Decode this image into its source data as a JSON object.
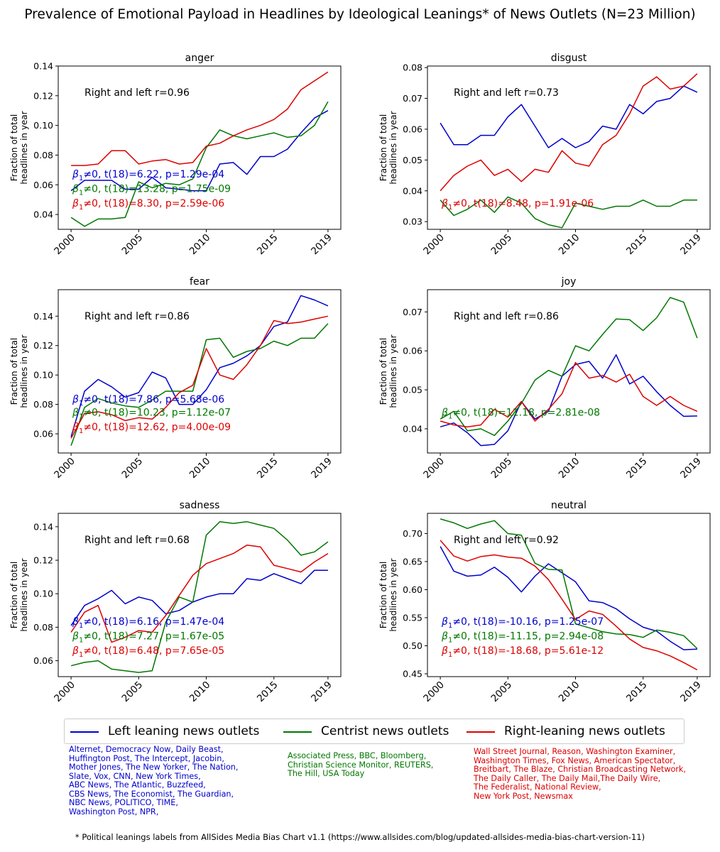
{
  "title": "Prevalence of Emotional Payload in Headlines by Ideological Leanings* of News Outlets (N=23 Million)",
  "colors": {
    "left": "#0000cc",
    "center": "#007700",
    "right": "#dd0000"
  },
  "chart_data": [
    {
      "type": "line",
      "title": "anger",
      "ylabel": "Fraction of total headlines in year",
      "x": [
        2000,
        2001,
        2002,
        2003,
        2004,
        2005,
        2006,
        2007,
        2008,
        2009,
        2010,
        2011,
        2012,
        2013,
        2014,
        2015,
        2016,
        2017,
        2018,
        2019
      ],
      "xticks": [
        2000,
        2005,
        2010,
        2015,
        2019
      ],
      "ylim": [
        0.03,
        0.14
      ],
      "yticks": [
        0.04,
        0.06,
        0.08,
        0.1,
        0.12,
        0.14
      ],
      "yticklabels": [
        "0.04",
        "0.06",
        "0.08",
        "0.10",
        "0.12",
        "0.14"
      ],
      "series": [
        {
          "name": "left",
          "values": [
            0.056,
            0.063,
            0.063,
            0.063,
            0.057,
            0.057,
            0.065,
            0.058,
            0.057,
            0.056,
            0.056,
            0.074,
            0.075,
            0.067,
            0.079,
            0.079,
            0.084,
            0.095,
            0.105,
            0.11
          ]
        },
        {
          "name": "center",
          "values": [
            0.038,
            0.032,
            0.037,
            0.037,
            0.038,
            0.062,
            0.058,
            0.061,
            0.06,
            0.064,
            0.085,
            0.097,
            0.093,
            0.091,
            0.093,
            0.095,
            0.092,
            0.093,
            0.1,
            0.116
          ]
        },
        {
          "name": "right",
          "values": [
            0.073,
            0.073,
            0.074,
            0.083,
            0.083,
            0.074,
            0.076,
            0.077,
            0.074,
            0.075,
            0.086,
            0.088,
            0.093,
            0.097,
            0.1,
            0.104,
            0.111,
            0.124,
            0.13,
            0.136
          ]
        }
      ],
      "annotations": {
        "r": "Right and left r=0.96",
        "stats": [
          {
            "series": "left",
            "text": "≠0, t(18)=6.22, p=1.29e-04"
          },
          {
            "series": "center",
            "text": "≠0, t(18)=13.28, p=1.75e-09"
          },
          {
            "series": "right",
            "text": "≠0, t(18)=8.30, p=2.59e-06"
          }
        ]
      }
    },
    {
      "type": "line",
      "title": "disgust",
      "ylabel": "Fraction of total headlines in year",
      "x": [
        2000,
        2001,
        2002,
        2003,
        2004,
        2005,
        2006,
        2007,
        2008,
        2009,
        2010,
        2011,
        2012,
        2013,
        2014,
        2015,
        2016,
        2017,
        2018,
        2019
      ],
      "xticks": [
        2000,
        2005,
        2010,
        2015,
        2019
      ],
      "ylim": [
        0.0275,
        0.0805
      ],
      "yticks": [
        0.03,
        0.04,
        0.05,
        0.06,
        0.07,
        0.08
      ],
      "yticklabels": [
        "0.03",
        "0.04",
        "0.05",
        "0.06",
        "0.07",
        "0.08"
      ],
      "series": [
        {
          "name": "left",
          "values": [
            0.062,
            0.055,
            0.055,
            0.058,
            0.058,
            0.064,
            0.068,
            0.061,
            0.054,
            0.057,
            0.054,
            0.056,
            0.061,
            0.06,
            0.068,
            0.065,
            0.069,
            0.07,
            0.074,
            0.072
          ]
        },
        {
          "name": "center",
          "values": [
            0.037,
            0.032,
            0.034,
            0.037,
            0.033,
            0.038,
            0.036,
            0.031,
            0.029,
            0.028,
            0.036,
            0.035,
            0.034,
            0.035,
            0.035,
            0.037,
            0.035,
            0.035,
            0.037,
            0.037
          ]
        },
        {
          "name": "right",
          "values": [
            0.04,
            0.045,
            0.048,
            0.05,
            0.045,
            0.047,
            0.043,
            0.047,
            0.046,
            0.053,
            0.049,
            0.048,
            0.055,
            0.058,
            0.065,
            0.074,
            0.077,
            0.073,
            0.074,
            0.078
          ]
        }
      ],
      "annotations": {
        "r": "Right and left r=0.73",
        "stats": [
          {
            "series": "right",
            "text": "≠0, t(18)=8.48, p=1.91e-06"
          }
        ]
      }
    },
    {
      "type": "line",
      "title": "fear",
      "ylabel": "Fraction of total headlines in year",
      "x": [
        2000,
        2001,
        2002,
        2003,
        2004,
        2005,
        2006,
        2007,
        2008,
        2009,
        2010,
        2011,
        2012,
        2013,
        2014,
        2015,
        2016,
        2017,
        2018,
        2019
      ],
      "xticks": [
        2000,
        2005,
        2010,
        2015,
        2019
      ],
      "ylim": [
        0.047,
        0.158
      ],
      "yticks": [
        0.06,
        0.08,
        0.1,
        0.12,
        0.14
      ],
      "yticklabels": [
        "0.06",
        "0.08",
        "0.10",
        "0.12",
        "0.14"
      ],
      "series": [
        {
          "name": "left",
          "values": [
            0.058,
            0.089,
            0.097,
            0.092,
            0.085,
            0.088,
            0.102,
            0.098,
            0.08,
            0.08,
            0.09,
            0.105,
            0.108,
            0.113,
            0.12,
            0.133,
            0.136,
            0.154,
            0.151,
            0.147
          ]
        },
        {
          "name": "center",
          "values": [
            0.052,
            0.078,
            0.084,
            0.081,
            0.079,
            0.078,
            0.083,
            0.089,
            0.089,
            0.089,
            0.124,
            0.125,
            0.112,
            0.116,
            0.118,
            0.123,
            0.12,
            0.125,
            0.125,
            0.135
          ]
        },
        {
          "name": "right",
          "values": [
            0.057,
            0.074,
            0.075,
            0.073,
            0.069,
            0.071,
            0.07,
            0.078,
            0.088,
            0.093,
            0.118,
            0.1,
            0.097,
            0.107,
            0.12,
            0.137,
            0.135,
            0.136,
            0.138,
            0.14
          ]
        }
      ],
      "annotations": {
        "r": "Right and left r=0.86",
        "stats": [
          {
            "series": "left",
            "text": "≠0, t(18)=7.86, p=5.68e-06"
          },
          {
            "series": "center",
            "text": "≠0, t(18)=10.23, p=1.12e-07"
          },
          {
            "series": "right",
            "text": "≠0, t(18)=12.62, p=4.00e-09"
          }
        ]
      }
    },
    {
      "type": "line",
      "title": "joy",
      "ylabel": "Fraction of total headlines in year",
      "x": [
        2000,
        2001,
        2002,
        2003,
        2004,
        2005,
        2006,
        2007,
        2008,
        2009,
        2010,
        2011,
        2012,
        2013,
        2014,
        2015,
        2016,
        2017,
        2018,
        2019
      ],
      "xticks": [
        2000,
        2005,
        2010,
        2015,
        2019
      ],
      "ylim": [
        0.0338,
        0.0757
      ],
      "yticks": [
        0.04,
        0.05,
        0.06,
        0.07
      ],
      "yticklabels": [
        "0.04",
        "0.05",
        "0.06",
        "0.07"
      ],
      "series": [
        {
          "name": "left",
          "values": [
            0.0405,
            0.0415,
            0.039,
            0.0357,
            0.036,
            0.0395,
            0.047,
            0.0425,
            0.0445,
            0.0535,
            0.0565,
            0.0573,
            0.053,
            0.059,
            0.0515,
            0.0535,
            0.0495,
            0.046,
            0.0432,
            0.0433
          ]
        },
        {
          "name": "center",
          "values": [
            0.0425,
            0.0445,
            0.0395,
            0.04,
            0.0383,
            0.042,
            0.0465,
            0.0525,
            0.055,
            0.0535,
            0.0613,
            0.06,
            0.0642,
            0.0682,
            0.068,
            0.0652,
            0.0685,
            0.0737,
            0.0725,
            0.0633
          ]
        },
        {
          "name": "right",
          "values": [
            0.042,
            0.041,
            0.0405,
            0.041,
            0.045,
            0.043,
            0.047,
            0.042,
            0.045,
            0.049,
            0.057,
            0.053,
            0.0537,
            0.052,
            0.054,
            0.0483,
            0.046,
            0.0483,
            0.046,
            0.0445
          ]
        }
      ],
      "annotations": {
        "r": "Right and left r=0.86",
        "stats": [
          {
            "series": "center",
            "text": "≠0, t(18)=11.18, p=2.81e-08"
          }
        ]
      }
    },
    {
      "type": "line",
      "title": "sadness",
      "ylabel": "Fraction of total headlines in year",
      "x": [
        2000,
        2001,
        2002,
        2003,
        2004,
        2005,
        2006,
        2007,
        2008,
        2009,
        2010,
        2011,
        2012,
        2013,
        2014,
        2015,
        2016,
        2017,
        2018,
        2019
      ],
      "xticks": [
        2000,
        2005,
        2010,
        2015,
        2019
      ],
      "ylim": [
        0.0505,
        0.148
      ],
      "yticks": [
        0.06,
        0.08,
        0.1,
        0.12,
        0.14
      ],
      "yticklabels": [
        "0.06",
        "0.08",
        "0.10",
        "0.12",
        "0.14"
      ],
      "series": [
        {
          "name": "left",
          "values": [
            0.081,
            0.093,
            0.097,
            0.102,
            0.094,
            0.098,
            0.096,
            0.088,
            0.09,
            0.095,
            0.098,
            0.1,
            0.1,
            0.109,
            0.108,
            0.112,
            0.109,
            0.106,
            0.114,
            0.114
          ]
        },
        {
          "name": "center",
          "values": [
            0.057,
            0.059,
            0.06,
            0.055,
            0.054,
            0.053,
            0.054,
            0.083,
            0.098,
            0.095,
            0.135,
            0.143,
            0.142,
            0.143,
            0.141,
            0.139,
            0.132,
            0.123,
            0.125,
            0.131
          ]
        },
        {
          "name": "right",
          "values": [
            0.077,
            0.089,
            0.093,
            0.071,
            0.074,
            0.078,
            0.077,
            0.087,
            0.099,
            0.111,
            0.118,
            0.121,
            0.124,
            0.129,
            0.128,
            0.117,
            0.115,
            0.113,
            0.119,
            0.124
          ]
        }
      ],
      "annotations": {
        "r": "Right and left r=0.68",
        "stats": [
          {
            "series": "left",
            "text": "≠0, t(18)=6.16, p=1.47e-04"
          },
          {
            "series": "center",
            "text": "≠0, t(18)=7.27, p=1.67e-05"
          },
          {
            "series": "right",
            "text": "≠0, t(18)=6.48, p=7.65e-05"
          }
        ]
      }
    },
    {
      "type": "line",
      "title": "neutral",
      "ylabel": "Fraction of total headlines in year",
      "x": [
        2000,
        2001,
        2002,
        2003,
        2004,
        2005,
        2006,
        2007,
        2008,
        2009,
        2010,
        2011,
        2012,
        2013,
        2014,
        2015,
        2016,
        2017,
        2018,
        2019
      ],
      "xticks": [
        2000,
        2005,
        2010,
        2015,
        2019
      ],
      "ylim": [
        0.445,
        0.736
      ],
      "yticks": [
        0.45,
        0.5,
        0.55,
        0.6,
        0.65,
        0.7
      ],
      "yticklabels": [
        "0.45",
        "0.50",
        "0.55",
        "0.60",
        "0.65",
        "0.70"
      ],
      "series": [
        {
          "name": "left",
          "values": [
            0.677,
            0.633,
            0.624,
            0.626,
            0.64,
            0.622,
            0.596,
            0.624,
            0.646,
            0.63,
            0.614,
            0.58,
            0.577,
            0.566,
            0.548,
            0.533,
            0.526,
            0.508,
            0.493,
            0.494
          ]
        },
        {
          "name": "center",
          "values": [
            0.726,
            0.719,
            0.709,
            0.717,
            0.723,
            0.7,
            0.697,
            0.647,
            0.636,
            0.635,
            0.539,
            0.532,
            0.525,
            0.521,
            0.52,
            0.515,
            0.528,
            0.524,
            0.518,
            0.495
          ]
        },
        {
          "name": "right",
          "values": [
            0.688,
            0.66,
            0.651,
            0.659,
            0.662,
            0.658,
            0.656,
            0.642,
            0.618,
            0.583,
            0.547,
            0.562,
            0.556,
            0.535,
            0.512,
            0.497,
            0.491,
            0.482,
            0.47,
            0.457
          ]
        }
      ],
      "annotations": {
        "r": "Right and left r=0.92",
        "stats": [
          {
            "series": "left",
            "text": "≠0, t(18)=-10.16, p=1.25e-07"
          },
          {
            "series": "center",
            "text": "≠0, t(18)=-11.15, p=2.94e-08"
          },
          {
            "series": "right",
            "text": "≠0, t(18)=-18.68, p=5.61e-12"
          }
        ]
      }
    }
  ],
  "legend": {
    "left_label": "Left leaning news outlets",
    "center_label": "Centrist news outlets",
    "right_label": "Right-leaning news outlets"
  },
  "outlets": {
    "left": [
      "Alternet, Democracy Now, Daily Beast,",
      "Huffington Post, The Intercept, Jacobin,",
      "Mother Jones, The New Yorker, The Nation,",
      "Slate, Vox, CNN, New York Times,",
      "ABC News, The Atlantic, Buzzfeed,",
      "CBS News, The Economist, The Guardian,",
      "NBC News, POLITICO, TIME,",
      "Washington Post, NPR,"
    ],
    "center": [
      "Associated Press, BBC, Bloomberg,",
      "Christian Science Monitor, REUTERS,",
      "The Hill, USA Today"
    ],
    "right": [
      "Wall Street Journal, Reason, Washington Examiner,",
      "Washington Times, Fox News, American Spectator,",
      "Breitbart, The Blaze, Christian Broadcasting Network,",
      "The Daily Caller, The Daily Mail,The Daily Wire,",
      "The Federalist, National Review,",
      "New York Post, Newsmax"
    ]
  },
  "footnote": "* Political leanings labels from AllSides Media Bias Chart v1.1 (https://www.allsides.com/blog/updated-allsides-media-bias-chart-version-11)"
}
